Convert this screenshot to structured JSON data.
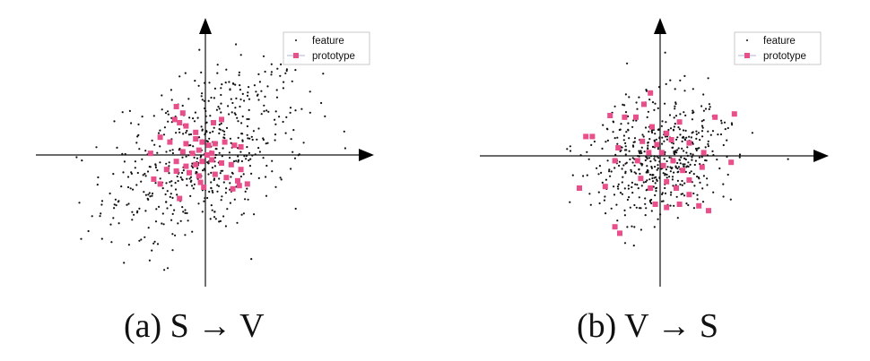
{
  "chart_data": [
    {
      "type": "scatter",
      "title": "",
      "xlabel": "",
      "ylabel": "",
      "grid": false,
      "legend_placement": "top-right",
      "caption": "(a) S → V",
      "legend": [
        {
          "name": "feature",
          "color": "#111111",
          "marker": "dot"
        },
        {
          "name": "prototype",
          "color": "#e8508c",
          "marker": "square"
        }
      ],
      "prototypes": [
        [
          -0.9,
          1.5
        ],
        [
          -0.7,
          1.3
        ],
        [
          -0.95,
          1.1
        ],
        [
          -0.8,
          1.0
        ],
        [
          -0.6,
          0.9
        ],
        [
          -0.3,
          0.7
        ],
        [
          0.25,
          1.0
        ],
        [
          0.5,
          1.1
        ],
        [
          -1.4,
          0.55
        ],
        [
          -1.1,
          0.4
        ],
        [
          -0.6,
          0.35
        ],
        [
          -0.3,
          0.5
        ],
        [
          -0.1,
          0.4
        ],
        [
          0.1,
          0.3
        ],
        [
          0.3,
          0.35
        ],
        [
          0.6,
          0.4
        ],
        [
          0.9,
          0.3
        ],
        [
          1.1,
          0.25
        ],
        [
          -0.7,
          0.1
        ],
        [
          -0.4,
          0.05
        ],
        [
          -0.2,
          0.15
        ],
        [
          0.05,
          0.0
        ],
        [
          0.2,
          0.05
        ],
        [
          -1.7,
          0.05
        ],
        [
          -0.9,
          -0.2
        ],
        [
          -0.6,
          -0.35
        ],
        [
          -0.3,
          -0.3
        ],
        [
          -0.1,
          -0.2
        ],
        [
          0.2,
          -0.15
        ],
        [
          0.5,
          -0.25
        ],
        [
          0.8,
          -0.3
        ],
        [
          1.1,
          -0.45
        ],
        [
          -1.2,
          -0.45
        ],
        [
          -0.9,
          -0.5
        ],
        [
          -0.5,
          -0.55
        ],
        [
          -0.2,
          -0.65
        ],
        [
          0.3,
          -0.6
        ],
        [
          0.65,
          -0.7
        ],
        [
          1.0,
          -0.8
        ],
        [
          1.3,
          -0.9
        ],
        [
          -1.6,
          -0.75
        ],
        [
          -1.4,
          -0.9
        ],
        [
          -0.15,
          -0.85
        ],
        [
          -0.05,
          -1.0
        ],
        [
          0.85,
          -1.05
        ],
        [
          1.05,
          -0.95
        ],
        [
          -0.8,
          -1.35
        ]
      ]
    },
    {
      "type": "scatter",
      "title": "",
      "xlabel": "",
      "ylabel": "",
      "grid": false,
      "legend_placement": "top-right",
      "caption": "(b) V → S",
      "legend": [
        {
          "name": "feature",
          "color": "#111111",
          "marker": "dot"
        },
        {
          "name": "prototype",
          "color": "#e8508c",
          "marker": "square"
        }
      ],
      "prototypes": [
        [
          -0.3,
          1.95
        ],
        [
          -0.5,
          1.6
        ],
        [
          -1.55,
          1.25
        ],
        [
          -1.1,
          1.2
        ],
        [
          -0.75,
          1.2
        ],
        [
          -2.1,
          0.6
        ],
        [
          -2.3,
          0.6
        ],
        [
          -0.25,
          0.9
        ],
        [
          0.2,
          0.7
        ],
        [
          0.6,
          1.05
        ],
        [
          1.7,
          1.2
        ],
        [
          2.3,
          1.3
        ],
        [
          -0.55,
          0.45
        ],
        [
          -0.1,
          0.35
        ],
        [
          0.35,
          0.5
        ],
        [
          0.9,
          0.4
        ],
        [
          -1.3,
          0.25
        ],
        [
          -0.35,
          0.1
        ],
        [
          0.05,
          0.1
        ],
        [
          0.4,
          -0.15
        ],
        [
          1.35,
          0.1
        ],
        [
          -1.4,
          -0.15
        ],
        [
          -0.7,
          -0.15
        ],
        [
          0.1,
          -0.3
        ],
        [
          0.7,
          -0.45
        ],
        [
          1.3,
          -0.35
        ],
        [
          2.2,
          -0.2
        ],
        [
          -0.6,
          -0.7
        ],
        [
          0.2,
          -0.8
        ],
        [
          0.9,
          -0.75
        ],
        [
          -2.5,
          -1.0
        ],
        [
          -1.7,
          -0.95
        ],
        [
          -0.3,
          -1.0
        ],
        [
          0.5,
          -1.0
        ],
        [
          0.9,
          -1.2
        ],
        [
          -0.15,
          -1.5
        ],
        [
          0.2,
          -1.6
        ],
        [
          0.6,
          -1.5
        ],
        [
          1.2,
          -1.55
        ],
        [
          1.5,
          -1.7
        ],
        [
          -1.4,
          -2.2
        ],
        [
          -1.25,
          -2.4
        ]
      ]
    }
  ],
  "captions": {
    "a": "(a) S → V",
    "b": "(b) V → S"
  }
}
